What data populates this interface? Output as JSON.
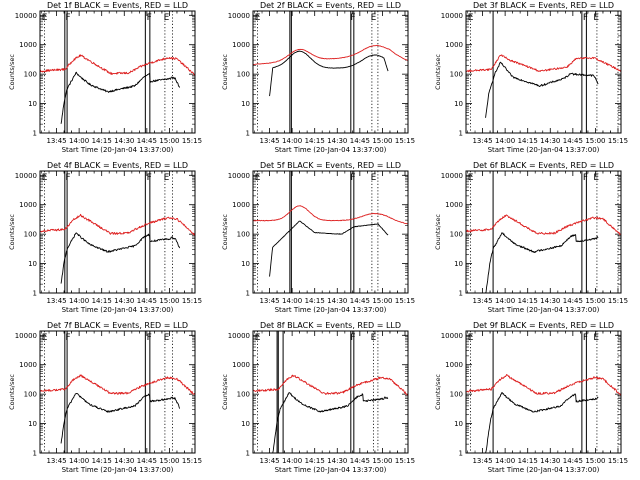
{
  "colors": {
    "events": "#000000",
    "lld": "#dd1f1f",
    "background": "#ffffff"
  },
  "chart_data": [
    {
      "type": "line",
      "title": "Det 1f BLACK = Events, RED = LLD",
      "xlabel": "Start Time (20-Jan-04 13:37:00)",
      "ylabel": "Counts/sec",
      "y_scale": "log",
      "ylim": [
        1,
        14000
      ],
      "xlim_min": [
        -3,
        100
      ],
      "xticks": [
        "13:45",
        "14:00",
        "14:15",
        "14:30",
        "14:45",
        "15:00",
        "15:15"
      ],
      "xtick_values": [
        8,
        23,
        38,
        53,
        68,
        83,
        98
      ],
      "yticks": [
        "1",
        "10",
        "100",
        "1000",
        "10000"
      ],
      "ytick_values": [
        1,
        10,
        100,
        1000,
        10000
      ],
      "solid_lines_min": [
        13.5,
        15,
        67,
        70
      ],
      "dotted_lines_min": [
        0,
        80,
        85
      ],
      "markers": [
        {
          "label": "E",
          "x": -1.5
        },
        {
          "label": "F",
          "x": 14.2
        },
        {
          "label": "F",
          "x": 68.2
        },
        {
          "label": "E",
          "x": 79.5
        }
      ],
      "profile": "A",
      "series": [
        {
          "name": "Events",
          "x_start": 11,
          "x_end": 90
        },
        {
          "name": "LLD",
          "x_start": -3,
          "x_end": 100
        }
      ]
    },
    {
      "type": "line",
      "title": "Det 2f BLACK = Events, RED = LLD",
      "xlabel": "Start Time (20-Jan-04 13:37:00)",
      "ylabel": "Counts/sec",
      "y_scale": "log",
      "ylim": [
        1,
        14000
      ],
      "xlim_min": [
        -3,
        100
      ],
      "xticks": [
        "13:45",
        "14:00",
        "14:15",
        "14:30",
        "14:45",
        "15:00",
        "15:15"
      ],
      "xtick_values": [
        8,
        23,
        38,
        53,
        68,
        83,
        98
      ],
      "yticks": [
        "1",
        "10",
        "100",
        "1000",
        "10000"
      ],
      "ytick_values": [
        1,
        10,
        100,
        1000,
        10000
      ],
      "solid_lines_min": [
        21.5,
        22.5,
        62,
        64
      ],
      "dotted_lines_min": [
        0,
        76,
        80
      ],
      "markers": [
        {
          "label": "E",
          "x": -1.5
        },
        {
          "label": "F",
          "x": 62
        },
        {
          "label": "E",
          "x": 75.5
        }
      ],
      "profile": "B",
      "series": [
        {
          "name": "Events",
          "x_start": 8,
          "x_end": 87
        },
        {
          "name": "LLD",
          "x_start": -3,
          "x_end": 100
        }
      ]
    },
    {
      "type": "line",
      "title": "Det 3f BLACK = Events, RED = LLD",
      "xlabel": "Start Time (20-Jan-04 13:37:00)",
      "ylabel": "Counts/sec",
      "y_scale": "log",
      "ylim": [
        1,
        14000
      ],
      "xlim_min": [
        -3,
        100
      ],
      "xticks": [
        "13:45",
        "14:00",
        "14:15",
        "14:30",
        "14:45",
        "15:00",
        "15:15"
      ],
      "xtick_values": [
        8,
        23,
        38,
        53,
        68,
        83,
        98
      ],
      "yticks": [
        "1",
        "10",
        "100",
        "1000",
        "10000"
      ],
      "ytick_values": [
        1,
        10,
        100,
        1000,
        10000
      ],
      "solid_lines_min": [
        15,
        74,
        77
      ],
      "dotted_lines_min": [
        0,
        84,
        98
      ],
      "markers": [
        {
          "label": "E",
          "x": -1.5
        },
        {
          "label": "F",
          "x": 75
        },
        {
          "label": "E",
          "x": 82
        }
      ],
      "profile": "C",
      "series": [
        {
          "name": "Events",
          "x_start": 10,
          "x_end": 85
        },
        {
          "name": "LLD",
          "x_start": -3,
          "x_end": 100
        }
      ]
    },
    {
      "type": "line",
      "title": "Det 4f BLACK = Events, RED = LLD",
      "xlabel": "Start Time (20-Jan-04 13:37:00)",
      "ylabel": "Counts/sec",
      "y_scale": "log",
      "ylim": [
        1,
        14000
      ],
      "xlim_min": [
        -3,
        100
      ],
      "xticks": [
        "13:45",
        "14:00",
        "14:15",
        "14:30",
        "14:45",
        "15:00",
        "15:15"
      ],
      "xtick_values": [
        8,
        23,
        38,
        53,
        68,
        83,
        98
      ],
      "yticks": [
        "1",
        "10",
        "100",
        "1000",
        "10000"
      ],
      "ytick_values": [
        1,
        10,
        100,
        1000,
        10000
      ],
      "solid_lines_min": [
        13.5,
        15,
        67,
        70
      ],
      "dotted_lines_min": [
        0,
        80,
        85
      ],
      "markers": [
        {
          "label": "E",
          "x": -1.5
        },
        {
          "label": "F",
          "x": 14.2
        },
        {
          "label": "F",
          "x": 68.2
        },
        {
          "label": "E",
          "x": 79.5
        }
      ],
      "profile": "A",
      "series": [
        {
          "name": "Events",
          "x_start": 11,
          "x_end": 90
        },
        {
          "name": "LLD",
          "x_start": -3,
          "x_end": 100
        }
      ]
    },
    {
      "type": "line",
      "title": "Det 5f BLACK = Events, RED = LLD",
      "xlabel": "Start Time (20-Jan-04 13:37:00)",
      "ylabel": "Counts/sec",
      "y_scale": "log",
      "ylim": [
        1,
        14000
      ],
      "xlim_min": [
        -3,
        100
      ],
      "xticks": [
        "13:45",
        "14:00",
        "14:15",
        "14:30",
        "14:45",
        "15:00",
        "15:15"
      ],
      "xtick_values": [
        8,
        23,
        38,
        53,
        68,
        83,
        98
      ],
      "yticks": [
        "1",
        "10",
        "100",
        "1000",
        "10000"
      ],
      "ytick_values": [
        1,
        10,
        100,
        1000,
        10000
      ],
      "solid_lines_min": [
        21.5,
        22.5,
        62,
        64
      ],
      "dotted_lines_min": [
        0,
        76,
        80
      ],
      "markers": [
        {
          "label": "E",
          "x": -1.5
        },
        {
          "label": "F",
          "x": 62
        },
        {
          "label": "E",
          "x": 75.5
        }
      ],
      "profile": "D",
      "series": [
        {
          "name": "Events",
          "x_start": 8,
          "x_end": 87
        },
        {
          "name": "LLD",
          "x_start": -3,
          "x_end": 100
        }
      ]
    },
    {
      "type": "line",
      "title": "Det 6f BLACK = Events, RED = LLD",
      "xlabel": "Start Time (20-Jan-04 13:37:00)",
      "ylabel": "Counts/sec",
      "y_scale": "log",
      "ylim": [
        1,
        14000
      ],
      "xlim_min": [
        -3,
        100
      ],
      "xticks": [
        "13:45",
        "14:00",
        "14:15",
        "14:30",
        "14:45",
        "15:00",
        "15:15"
      ],
      "xtick_values": [
        8,
        23,
        38,
        53,
        68,
        83,
        98
      ],
      "yticks": [
        "1",
        "10",
        "100",
        "1000",
        "10000"
      ],
      "ytick_values": [
        1,
        10,
        100,
        1000,
        10000
      ],
      "solid_lines_min": [
        15,
        74,
        77
      ],
      "dotted_lines_min": [
        0,
        84,
        98
      ],
      "markers": [
        {
          "label": "E",
          "x": -1.5
        },
        {
          "label": "F",
          "x": 75
        },
        {
          "label": "E",
          "x": 82
        }
      ],
      "profile": "A",
      "series": [
        {
          "name": "Events",
          "x_start": 10,
          "x_end": 85
        },
        {
          "name": "LLD",
          "x_start": -3,
          "x_end": 100
        }
      ]
    },
    {
      "type": "line",
      "title": "Det 7f BLACK = Events, RED = LLD",
      "xlabel": "Start Time (20-Jan-04 13:37:00)",
      "ylabel": "Counts/sec",
      "y_scale": "log",
      "ylim": [
        1,
        14000
      ],
      "xlim_min": [
        -3,
        100
      ],
      "xticks": [
        "13:45",
        "14:00",
        "14:15",
        "14:30",
        "14:45",
        "15:00",
        "15:15"
      ],
      "xtick_values": [
        8,
        23,
        38,
        53,
        68,
        83,
        98
      ],
      "yticks": [
        "1",
        "10",
        "100",
        "1000",
        "10000"
      ],
      "ytick_values": [
        1,
        10,
        100,
        1000,
        10000
      ],
      "solid_lines_min": [
        13.5,
        15,
        67,
        70
      ],
      "dotted_lines_min": [
        0,
        80,
        85
      ],
      "markers": [
        {
          "label": "E",
          "x": -1.5
        },
        {
          "label": "F",
          "x": 14.2
        },
        {
          "label": "F",
          "x": 68.2
        },
        {
          "label": "E",
          "x": 79.5
        }
      ],
      "profile": "A",
      "series": [
        {
          "name": "Events",
          "x_start": 11,
          "x_end": 90
        },
        {
          "name": "LLD",
          "x_start": -3,
          "x_end": 100
        }
      ]
    },
    {
      "type": "line",
      "title": "Det 8f BLACK = Events, RED = LLD",
      "xlabel": "Start Time (20-Jan-04 13:37:00)",
      "ylabel": "Counts/sec",
      "y_scale": "log",
      "ylim": [
        1,
        14000
      ],
      "xlim_min": [
        -3,
        100
      ],
      "xticks": [
        "13:45",
        "14:00",
        "14:15",
        "14:30",
        "14:45",
        "15:00",
        "15:15"
      ],
      "xtick_values": [
        8,
        23,
        38,
        53,
        68,
        83,
        98
      ],
      "yticks": [
        "1",
        "10",
        "100",
        "1000",
        "10000"
      ],
      "ytick_values": [
        1,
        10,
        100,
        1000,
        10000
      ],
      "solid_lines_min": [
        13,
        13.8,
        17,
        62,
        64
      ],
      "dotted_lines_min": [
        0,
        77,
        80
      ],
      "markers": [
        {
          "label": "E",
          "x": -1.5
        },
        {
          "label": "F",
          "x": 62
        },
        {
          "label": "E",
          "x": 75.5
        }
      ],
      "profile": "A",
      "series": [
        {
          "name": "Events",
          "x_start": 8,
          "x_end": 87
        },
        {
          "name": "LLD",
          "x_start": -3,
          "x_end": 100
        }
      ]
    },
    {
      "type": "line",
      "title": "Det 9f BLACK = Events, RED = LLD",
      "xlabel": "Start Time (20-Jan-04 13:37:00)",
      "ylabel": "Counts/sec",
      "y_scale": "log",
      "ylim": [
        1,
        14000
      ],
      "xlim_min": [
        -3,
        100
      ],
      "xticks": [
        "13:45",
        "14:00",
        "14:15",
        "14:30",
        "14:45",
        "15:00",
        "15:15"
      ],
      "xtick_values": [
        8,
        23,
        38,
        53,
        68,
        83,
        98
      ],
      "yticks": [
        "1",
        "10",
        "100",
        "1000",
        "10000"
      ],
      "ytick_values": [
        1,
        10,
        100,
        1000,
        10000
      ],
      "solid_lines_min": [
        15,
        74,
        77
      ],
      "dotted_lines_min": [
        0,
        84,
        98
      ],
      "markers": [
        {
          "label": "E",
          "x": -1.5
        },
        {
          "label": "F",
          "x": 75
        },
        {
          "label": "E",
          "x": 82
        }
      ],
      "profile": "A",
      "series": [
        {
          "name": "Events",
          "x_start": 10,
          "x_end": 85
        },
        {
          "name": "LLD",
          "x_start": -3,
          "x_end": 100
        }
      ]
    }
  ]
}
